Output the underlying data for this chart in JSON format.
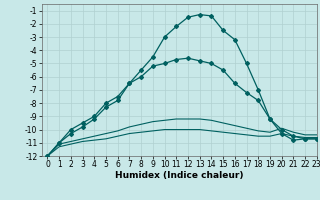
{
  "title": "",
  "xlabel": "Humidex (Indice chaleur)",
  "ylabel": "",
  "background_color": "#c8e8e8",
  "grid_color": "#b0d0d0",
  "line_color": "#006060",
  "xlim": [
    -0.5,
    23
  ],
  "ylim": [
    -12,
    -0.5
  ],
  "yticks": [
    -12,
    -11,
    -10,
    -9,
    -8,
    -7,
    -6,
    -5,
    -4,
    -3,
    -2,
    -1
  ],
  "xticks": [
    0,
    1,
    2,
    3,
    4,
    5,
    6,
    7,
    8,
    9,
    10,
    11,
    12,
    13,
    14,
    15,
    16,
    17,
    18,
    19,
    20,
    21,
    22,
    23
  ],
  "line_bottom1_x": [
    0,
    1,
    2,
    3,
    4,
    5,
    6,
    7,
    8,
    9,
    10,
    11,
    12,
    13,
    14,
    15,
    16,
    17,
    18,
    19,
    20,
    21,
    22,
    23
  ],
  "line_bottom1_y": [
    -12,
    -11.3,
    -11.1,
    -10.9,
    -10.8,
    -10.7,
    -10.5,
    -10.3,
    -10.2,
    -10.1,
    -10.0,
    -10.0,
    -10.0,
    -10.0,
    -10.1,
    -10.2,
    -10.3,
    -10.4,
    -10.5,
    -10.5,
    -10.3,
    -10.5,
    -10.6,
    -10.6
  ],
  "line_bottom2_x": [
    0,
    1,
    2,
    3,
    4,
    5,
    6,
    7,
    8,
    9,
    10,
    11,
    12,
    13,
    14,
    15,
    16,
    17,
    18,
    19,
    20,
    21,
    22,
    23
  ],
  "line_bottom2_y": [
    -12,
    -11.1,
    -10.9,
    -10.7,
    -10.5,
    -10.3,
    -10.1,
    -9.8,
    -9.6,
    -9.4,
    -9.3,
    -9.2,
    -9.2,
    -9.2,
    -9.3,
    -9.5,
    -9.7,
    -9.9,
    -10.1,
    -10.2,
    -9.9,
    -10.2,
    -10.4,
    -10.4
  ],
  "line_mid_x": [
    0,
    1,
    2,
    3,
    4,
    5,
    6,
    7,
    8,
    9,
    10,
    11,
    12,
    13,
    14,
    15,
    16,
    17,
    18,
    19,
    20,
    21,
    22,
    23
  ],
  "line_mid_y": [
    -12,
    -11,
    -10,
    -9.5,
    -9,
    -8,
    -7.5,
    -6.5,
    -6,
    -5.2,
    -5.0,
    -4.7,
    -4.6,
    -4.8,
    -5.0,
    -5.5,
    -6.5,
    -7.2,
    -7.8,
    -9.2,
    -10.3,
    -10.8,
    -10.7,
    -10.7
  ],
  "line_top_x": [
    0,
    1,
    2,
    3,
    4,
    5,
    6,
    7,
    8,
    9,
    10,
    11,
    12,
    13,
    14,
    15,
    16,
    17,
    18,
    19,
    20,
    21,
    22,
    23
  ],
  "line_top_y": [
    -12,
    -11,
    -10.3,
    -9.8,
    -9.2,
    -8.3,
    -7.8,
    -6.5,
    -5.5,
    -4.5,
    -3.0,
    -2.2,
    -1.5,
    -1.3,
    -1.4,
    -2.5,
    -3.2,
    -5.0,
    -7.0,
    -9.2,
    -10.0,
    -10.5,
    -10.7,
    -10.7
  ]
}
